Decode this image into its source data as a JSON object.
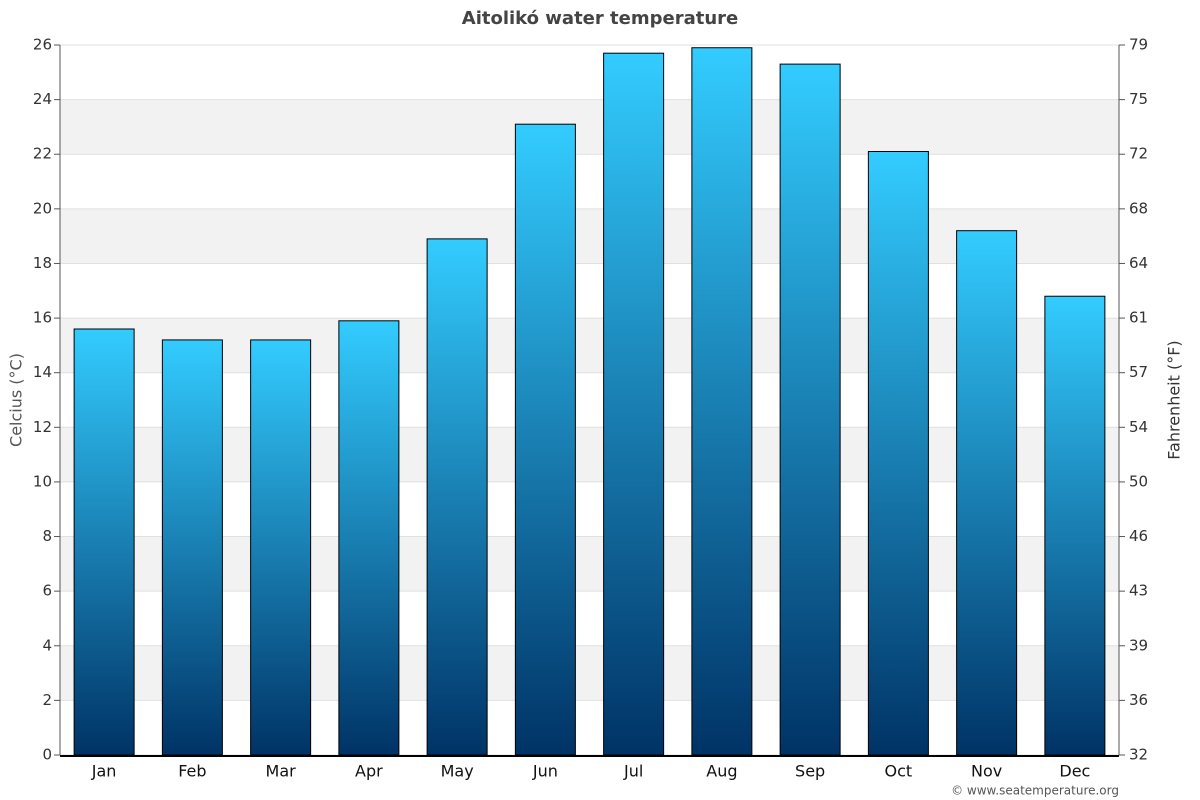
{
  "chart_data": {
    "type": "bar",
    "title": "Aitolikó water temperature",
    "y_label": "Celcius (°C)",
    "y2_label": "Fahrenheit (°F)",
    "categories": [
      "Jan",
      "Feb",
      "Mar",
      "Apr",
      "May",
      "Jun",
      "Jul",
      "Aug",
      "Sep",
      "Oct",
      "Nov",
      "Dec"
    ],
    "values": [
      15.6,
      15.2,
      15.2,
      15.9,
      18.9,
      23.1,
      25.7,
      25.9,
      25.3,
      22.1,
      19.2,
      16.8
    ],
    "gradient": [
      "#33ccff",
      "#003366"
    ],
    "ylim": [
      0,
      26
    ],
    "yticks": [
      0,
      2,
      4,
      6,
      8,
      10,
      12,
      14,
      16,
      18,
      20,
      22,
      24,
      26
    ],
    "y2lim": [
      32,
      78.8
    ],
    "y2ticks": [
      32,
      {
        "value": 35.6,
        "label": "36"
      },
      {
        "value": 39.2,
        "label": "39"
      },
      {
        "value": 42.8,
        "label": "43"
      },
      {
        "value": 46.4,
        "label": "46"
      },
      50,
      {
        "value": 53.6,
        "label": "54"
      },
      {
        "value": 57.2,
        "label": "57"
      },
      {
        "value": 60.8,
        "label": "61"
      },
      {
        "value": 64.4,
        "label": "64"
      },
      68,
      {
        "value": 71.6,
        "label": "72"
      },
      {
        "value": 75.2,
        "label": "75"
      },
      {
        "value": 78.8,
        "label": "79"
      }
    ],
    "grid": true,
    "credit": "© www.seatemperature.org"
  }
}
